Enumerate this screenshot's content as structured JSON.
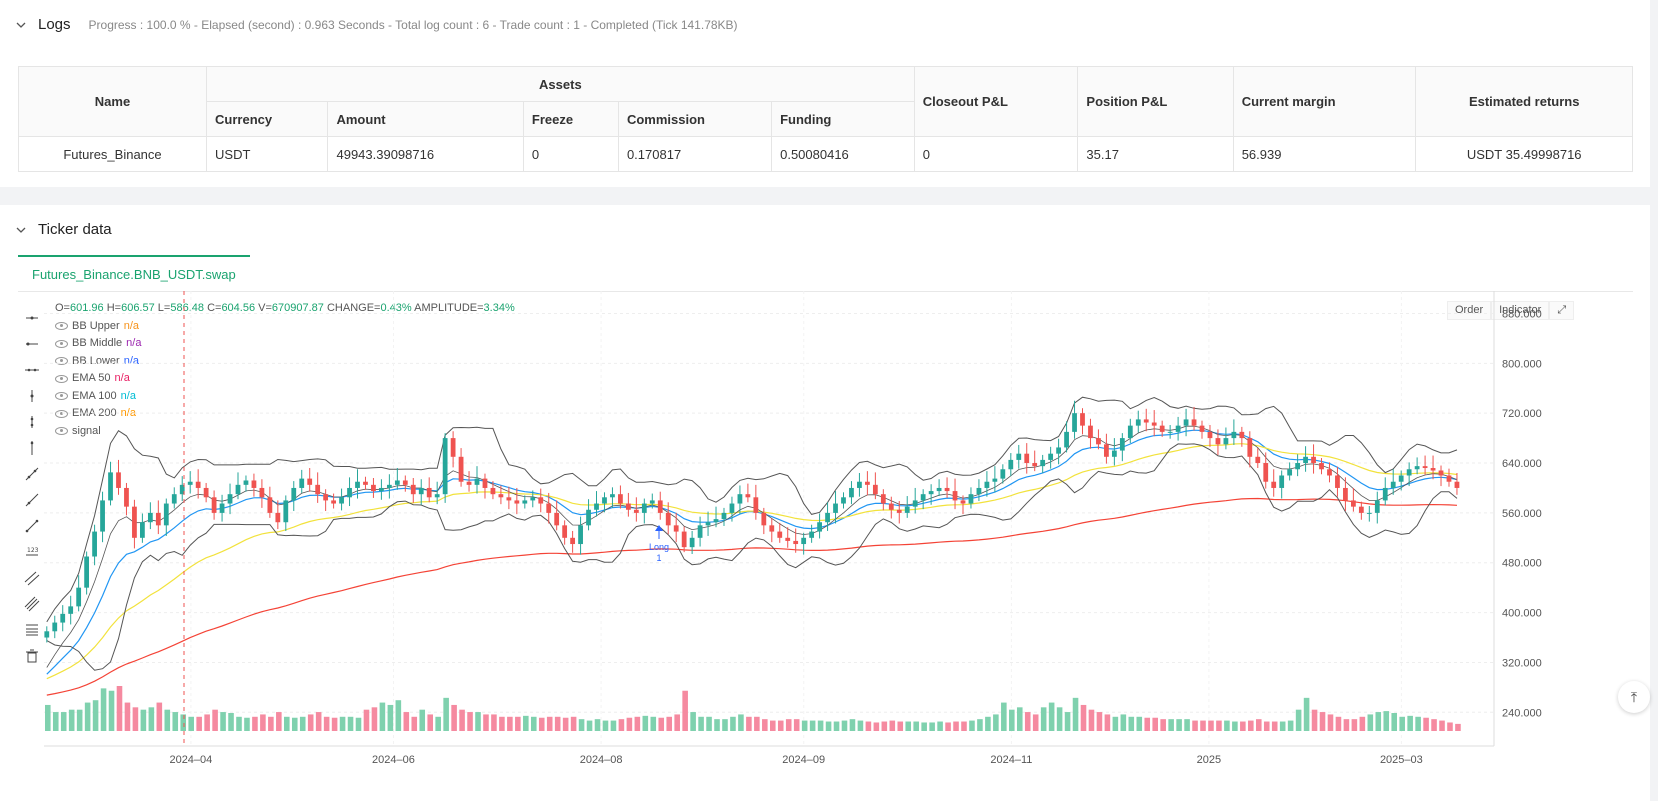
{
  "logs": {
    "title": "Logs",
    "summary": "Progress : 100.0 % - Elapsed (second) : 0.963  Seconds - Total log count : 6 - Trade count : 1 - Completed (Tick 141.78KB)"
  },
  "assets_table": {
    "headers": {
      "name": "Name",
      "assets": "Assets",
      "currency": "Currency",
      "amount": "Amount",
      "freeze": "Freeze",
      "commission": "Commission",
      "funding": "Funding",
      "closeout": "Closeout P&L",
      "position": "Position P&L",
      "margin": "Current margin",
      "returns": "Estimated returns"
    },
    "row": {
      "name": "Futures_Binance",
      "currency": "USDT",
      "amount": "49943.39098716",
      "freeze": "0",
      "commission": "0.170817",
      "funding": "0.50080416",
      "closeout": "0",
      "position": "35.17",
      "margin": "56.939",
      "returns": "USDT 35.49998716"
    }
  },
  "ticker": {
    "title": "Ticker data",
    "tab": "Futures_Binance.BNB_USDT.swap",
    "buttons": {
      "order": "Order",
      "indicator": "Indicator"
    },
    "ohlc": {
      "o_label": "O=",
      "o": "601.96",
      "h_label": "H=",
      "h": "606.57",
      "l_label": "L=",
      "l": "586.48",
      "c_label": "C=",
      "c": "604.56",
      "v_label": "V=",
      "v": "670907.87",
      "change_label": "CHANGE=",
      "change": "0.43%",
      "amp_label": "AMPLITUDE=",
      "amp": "3.34%"
    },
    "indicators": [
      {
        "name": "BB Upper",
        "value": "n/a",
        "color": "#f7931a"
      },
      {
        "name": "BB Middle",
        "value": "n/a",
        "color": "#9c27b0"
      },
      {
        "name": "BB Lower",
        "value": "n/a",
        "color": "#2962ff"
      },
      {
        "name": "EMA 50",
        "value": "n/a",
        "color": "#e91e63"
      },
      {
        "name": "EMA 100",
        "value": "n/a",
        "color": "#00bcd4"
      },
      {
        "name": "EMA 200",
        "value": "n/a",
        "color": "#ff9800"
      },
      {
        "name": "signal",
        "value": "",
        "color": "#555"
      }
    ],
    "trade_marker": {
      "label": "Long",
      "count": "1"
    }
  },
  "chart_data": {
    "type": "candlestick",
    "y_ticks": [
      "880.000",
      "800.000",
      "720.000",
      "640.000",
      "560.000",
      "480.000",
      "400.000",
      "320.000",
      "240.000"
    ],
    "x_ticks": [
      "2024–04",
      "2024–06",
      "2024–08",
      "2024–09",
      "2024–11",
      "2025",
      "2025–03"
    ],
    "ylim": [
      210,
      900
    ],
    "colors": {
      "up": "#26a69a",
      "down": "#ef5350",
      "ema50": "#2196f3",
      "ema100": "#ffeb3b",
      "ema200": "#f44336",
      "bb": "#555555"
    },
    "close": [
      370,
      384,
      398,
      410,
      440,
      490,
      530,
      580,
      625,
      600,
      570,
      520,
      545,
      560,
      540,
      575,
      590,
      605,
      610,
      600,
      585,
      560,
      575,
      590,
      605,
      612,
      600,
      585,
      560,
      545,
      580,
      600,
      615,
      605,
      590,
      580,
      575,
      585,
      600,
      610,
      605,
      595,
      600,
      605,
      612,
      605,
      590,
      600,
      585,
      590,
      680,
      650,
      610,
      605,
      615,
      600,
      590,
      585,
      580,
      575,
      580,
      585,
      575,
      560,
      540,
      520,
      510,
      540,
      565,
      575,
      585,
      590,
      575,
      565,
      560,
      575,
      580,
      560,
      540,
      530,
      505,
      520,
      540,
      545,
      550,
      560,
      575,
      590,
      585,
      560,
      540,
      530,
      520,
      515,
      510,
      520,
      530,
      545,
      560,
      575,
      585,
      600,
      610,
      605,
      590,
      575,
      565,
      560,
      570,
      580,
      590,
      595,
      600,
      595,
      580,
      575,
      590,
      600,
      610,
      615,
      630,
      645,
      655,
      640,
      635,
      645,
      655,
      665,
      690,
      720,
      700,
      680,
      670,
      650,
      660,
      680,
      700,
      710,
      705,
      700,
      690,
      690,
      700,
      710,
      700,
      690,
      680,
      670,
      680,
      690,
      680,
      650,
      640,
      610,
      600,
      620,
      630,
      640,
      650,
      640,
      630,
      620,
      600,
      580,
      570,
      560,
      560,
      580,
      600,
      610,
      620,
      630,
      635,
      632,
      628,
      620,
      610,
      600
    ],
    "volume": [
      55,
      40,
      40,
      45,
      45,
      60,
      65,
      90,
      85,
      95,
      60,
      50,
      45,
      50,
      60,
      45,
      40,
      35,
      30,
      30,
      35,
      45,
      40,
      38,
      30,
      28,
      30,
      35,
      30,
      40,
      30,
      28,
      30,
      35,
      40,
      30,
      28,
      30,
      30,
      28,
      45,
      50,
      60,
      55,
      65,
      40,
      30,
      45,
      35,
      30,
      70,
      55,
      45,
      40,
      40,
      35,
      35,
      30,
      30,
      30,
      32,
      30,
      28,
      30,
      30,
      28,
      30,
      25,
      22,
      25,
      22,
      22,
      25,
      28,
      30,
      32,
      30,
      28,
      30,
      35,
      85,
      40,
      30,
      30,
      25,
      25,
      30,
      35,
      30,
      30,
      25,
      22,
      22,
      25,
      25,
      22,
      22,
      22,
      20,
      20,
      22,
      25,
      22,
      20,
      18,
      20,
      22,
      20,
      20,
      20,
      18,
      18,
      20,
      18,
      20,
      20,
      22,
      25,
      30,
      35,
      60,
      45,
      50,
      40,
      35,
      50,
      60,
      50,
      40,
      70,
      55,
      45,
      40,
      35,
      30,
      35,
      30,
      30,
      28,
      28,
      25,
      25,
      25,
      25,
      22,
      22,
      22,
      22,
      22,
      20,
      20,
      22,
      25,
      20,
      20,
      20,
      22,
      45,
      70,
      45,
      40,
      35,
      30,
      25,
      25,
      30,
      35,
      40,
      42,
      38,
      30,
      32,
      30,
      28,
      25,
      22,
      18,
      15
    ]
  }
}
